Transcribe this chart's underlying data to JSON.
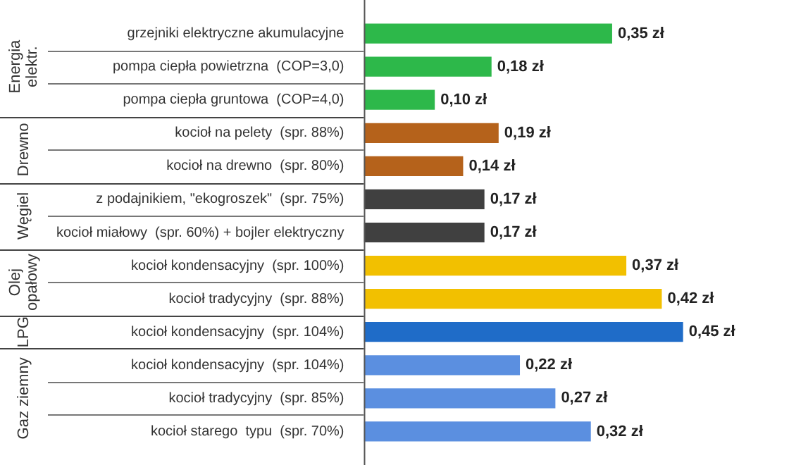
{
  "chart_data": {
    "type": "bar",
    "orientation": "horizontal",
    "categories": [
      "grzejniki elektryczne akumulacyjne",
      "pompa ciepła powietrzna  (COP=3,0)",
      "pompa ciepła gruntowa  (COP=4,0)",
      "kocioł na pelety  (spr. 88%)",
      "kocioł na drewno  (spr. 80%)",
      "z podajnikiem, \"ekogroszek\"  (spr. 75%)",
      "kocioł miałowy  (spr. 60%) + bojler elektryczny",
      "kocioł kondensacyjny  (spr. 100%)",
      "kocioł tradycyjny  (spr. 88%)",
      "kocioł kondensacyjny  (spr. 104%)",
      "kocioł kondensacyjny  (spr. 104%)",
      "kocioł tradycyjny  (spr. 85%)",
      "kocioł starego  typu  (spr. 70%)"
    ],
    "values": [
      0.35,
      0.18,
      0.1,
      0.19,
      0.14,
      0.17,
      0.17,
      0.37,
      0.42,
      0.45,
      0.22,
      0.27,
      0.32
    ],
    "colors": [
      "#2db84a",
      "#2db84a",
      "#2db84a",
      "#b5621b",
      "#b5621b",
      "#404040",
      "#404040",
      "#f2c000",
      "#f2c000",
      "#1f6cc8",
      "#5b8fe0",
      "#5b8fe0",
      "#5b8fe0"
    ],
    "value_labels": [
      "0,35 zł",
      "0,18 zł",
      "0,10 zł",
      "0,19 zł",
      "0,14 zł",
      "0,17 zł",
      "0,17 zł",
      "0,37 zł",
      "0,42 zł",
      "0,45 zł",
      "0,22 zł",
      "0,27 zł",
      "0,32 zł"
    ],
    "annotations": [
      "Energia elektr.",
      "Drewno",
      "Węgiel",
      "Olej opałowy",
      "LPG",
      "Gaz ziemny"
    ]
  }
}
